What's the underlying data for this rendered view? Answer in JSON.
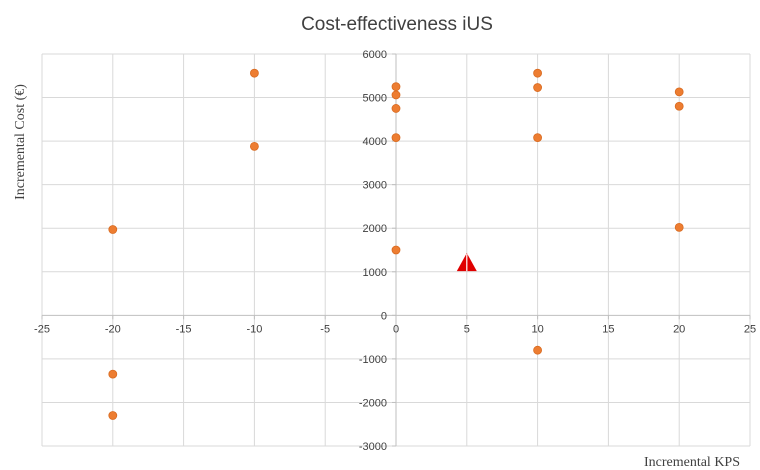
{
  "chart_data": {
    "type": "scatter",
    "title": "Cost-effectiveness iUS",
    "xlabel": "Incremental KPS",
    "ylabel": "Incremental Cost  (€)",
    "xlim": [
      -25,
      25
    ],
    "ylim": [
      -3000,
      6000
    ],
    "xticks": [
      -25,
      -20,
      -15,
      -10,
      -5,
      0,
      5,
      10,
      15,
      20,
      25
    ],
    "yticks": [
      -3000,
      -2000,
      -1000,
      0,
      1000,
      2000,
      3000,
      4000,
      5000,
      6000
    ],
    "grid": true,
    "legend": "none",
    "series": [
      {
        "marker": "circle",
        "color": "#ed7d31",
        "points": [
          {
            "x": -20,
            "y": 1970
          },
          {
            "x": -20,
            "y": -1350
          },
          {
            "x": -20,
            "y": -2300
          },
          {
            "x": -10,
            "y": 5560
          },
          {
            "x": -10,
            "y": 3880
          },
          {
            "x": 0,
            "y": 5250
          },
          {
            "x": 0,
            "y": 5060
          },
          {
            "x": 0,
            "y": 4750
          },
          {
            "x": 0,
            "y": 4080
          },
          {
            "x": 0,
            "y": 1500
          },
          {
            "x": 10,
            "y": 5560
          },
          {
            "x": 10,
            "y": 5230
          },
          {
            "x": 10,
            "y": 4080
          },
          {
            "x": 10,
            "y": -800
          },
          {
            "x": 20,
            "y": 5130
          },
          {
            "x": 20,
            "y": 4800
          },
          {
            "x": 20,
            "y": 2020
          }
        ]
      },
      {
        "marker": "triangle",
        "color": "#e00000",
        "points": [
          {
            "x": 5,
            "y": 1200
          }
        ]
      }
    ]
  }
}
